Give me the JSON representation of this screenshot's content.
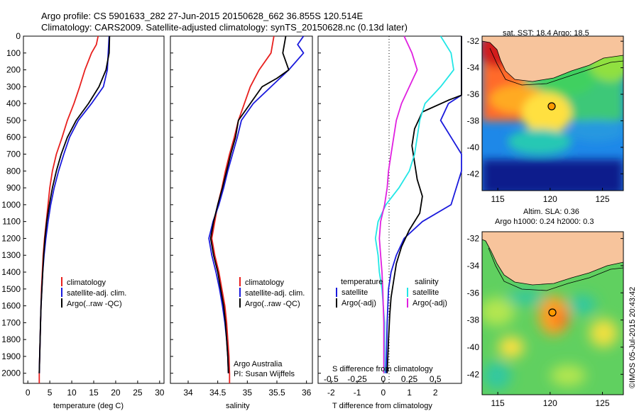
{
  "header": {
    "line1": "Argo profile: CS 5901633_282 27-Jun-2015 20150628_662 36.855S 120.514E",
    "line2": "Climatology: CARS2009. Satellite-adjusted climatology: synTS_20150628.nc (0.13d later)"
  },
  "colors": {
    "clim": "#e8201e",
    "sat": "#1a1adc",
    "argo": "#000000",
    "sat_s": "#22e6e6",
    "argo_s": "#e020e0",
    "land": "#f7c49c"
  },
  "depth_ticks": [
    0,
    100,
    200,
    300,
    400,
    500,
    600,
    700,
    800,
    900,
    1000,
    1100,
    1200,
    1300,
    1400,
    1500,
    1600,
    1700,
    1800,
    1900,
    2000
  ],
  "panels": {
    "temp": {
      "xlabel": "temperature (deg C)",
      "xticks": [
        "0",
        "5",
        "10",
        "15",
        "20",
        "25",
        "30"
      ],
      "legend": [
        "climatology",
        "satellite-adj. clim.",
        "Argo(..raw -QC)"
      ]
    },
    "sal": {
      "xlabel": "salinity",
      "xticks": [
        "34",
        "34.5",
        "35",
        "35.5",
        "36"
      ],
      "legend": [
        "climatology",
        "satellite-adj. clim.",
        "Argo(..raw -QC)"
      ],
      "credit1": "Argo Australia",
      "credit2": "PI: Susan Wijffels"
    },
    "diff": {
      "xlabel": "T difference from climatology",
      "xlabel_top": "S difference from climatology",
      "xticks_t": [
        "-2",
        "-1",
        "0",
        "1",
        "2"
      ],
      "xticks_s": [
        "-0.5",
        "-0.25",
        "0",
        "0.25",
        "0.5"
      ],
      "legend_t_title": "temperature",
      "legend_s_title": "salinity",
      "legend_t": [
        "satellite",
        "Argo(-adj)"
      ],
      "legend_s": [
        "satellite",
        "Argo(-adj)"
      ]
    }
  },
  "maps": {
    "sst_title": "sat. SST: 18.4 Argo: 18.5",
    "sla_title1": "Altim. SLA: 0.36",
    "sla_title2": "Argo h1000: 0.24 h2000: 0.3",
    "lat_ticks": [
      "-32",
      "-34",
      "-36",
      "-38",
      "-40",
      "-42"
    ],
    "lon_ticks": [
      "115",
      "120",
      "125"
    ],
    "stamp": "©IMOS 05-Jul-2015 20:43:42"
  },
  "chart_data": [
    {
      "type": "line",
      "xlabel": "temperature (deg C)",
      "xlim": [
        -1,
        31
      ],
      "ylim": [
        2060,
        0
      ],
      "series": [
        {
          "name": "climatology",
          "color": "#e8201e",
          "points": [
            [
              16,
              0
            ],
            [
              15.6,
              50
            ],
            [
              14.5,
              100
            ],
            [
              13,
              200
            ],
            [
              11.8,
              300
            ],
            [
              10.5,
              400
            ],
            [
              9,
              500
            ],
            [
              7.8,
              600
            ],
            [
              6.5,
              700
            ],
            [
              5.6,
              800
            ],
            [
              5,
              900
            ],
            [
              4.6,
              1000
            ],
            [
              4.2,
              1100
            ],
            [
              3.8,
              1200
            ],
            [
              3.5,
              1300
            ],
            [
              3.3,
              1400
            ],
            [
              3.1,
              1500
            ],
            [
              3,
              1600
            ],
            [
              2.9,
              1700
            ],
            [
              2.8,
              1800
            ],
            [
              2.7,
              1900
            ],
            [
              2.6,
              2000
            ],
            [
              2.6,
              2060
            ]
          ]
        },
        {
          "name": "satellite-adj. clim.",
          "color": "#1a1adc",
          "points": [
            [
              18.5,
              0
            ],
            [
              18.3,
              100
            ],
            [
              18.1,
              200
            ],
            [
              17.2,
              300
            ],
            [
              14.5,
              400
            ],
            [
              11.5,
              500
            ],
            [
              9.5,
              600
            ],
            [
              8.2,
              700
            ],
            [
              7,
              800
            ],
            [
              6,
              900
            ],
            [
              5.2,
              1000
            ],
            [
              4.6,
              1100
            ],
            [
              4.1,
              1200
            ],
            [
              3.7,
              1300
            ],
            [
              3.4,
              1400
            ],
            [
              3.2,
              1500
            ],
            [
              3,
              1600
            ],
            [
              2.9,
              1700
            ],
            [
              2.8,
              1800
            ],
            [
              2.7,
              1900
            ],
            [
              2.6,
              2000
            ]
          ]
        },
        {
          "name": "Argo(..raw -QC)",
          "color": "#000000",
          "points": [
            [
              18.6,
              0
            ],
            [
              18.5,
              100
            ],
            [
              17.8,
              200
            ],
            [
              16.2,
              300
            ],
            [
              13.8,
              400
            ],
            [
              11,
              500
            ],
            [
              9,
              600
            ],
            [
              7.6,
              700
            ],
            [
              6.5,
              800
            ],
            [
              5.6,
              900
            ],
            [
              4.9,
              1000
            ],
            [
              4.3,
              1100
            ],
            [
              3.9,
              1200
            ],
            [
              3.6,
              1300
            ],
            [
              3.4,
              1400
            ],
            [
              3.2,
              1500
            ],
            [
              3,
              1600
            ],
            [
              2.9,
              1700
            ],
            [
              2.8,
              1800
            ],
            [
              2.7,
              1900
            ],
            [
              2.6,
              2000
            ]
          ]
        }
      ]
    },
    {
      "type": "line",
      "xlabel": "salinity",
      "xlim": [
        33.7,
        36.1
      ],
      "ylim": [
        2060,
        0
      ],
      "series": [
        {
          "name": "climatology",
          "color": "#e8201e",
          "points": [
            [
              35.45,
              0
            ],
            [
              35.4,
              100
            ],
            [
              35.2,
              200
            ],
            [
              35.05,
              300
            ],
            [
              34.95,
              400
            ],
            [
              34.85,
              500
            ],
            [
              34.78,
              600
            ],
            [
              34.7,
              700
            ],
            [
              34.63,
              800
            ],
            [
              34.57,
              900
            ],
            [
              34.5,
              1000
            ],
            [
              34.45,
              1100
            ],
            [
              34.4,
              1200
            ],
            [
              34.45,
              1300
            ],
            [
              34.52,
              1400
            ],
            [
              34.57,
              1500
            ],
            [
              34.62,
              1600
            ],
            [
              34.65,
              1700
            ],
            [
              34.67,
              1800
            ],
            [
              34.69,
              1900
            ],
            [
              34.7,
              2000
            ],
            [
              34.7,
              2060
            ]
          ]
        },
        {
          "name": "satellite-adj. clim.",
          "color": "#1a1adc",
          "points": [
            [
              35.95,
              0
            ],
            [
              35.85,
              50
            ],
            [
              35.95,
              100
            ],
            [
              35.7,
              200
            ],
            [
              35.4,
              300
            ],
            [
              35.1,
              400
            ],
            [
              34.9,
              500
            ],
            [
              34.83,
              600
            ],
            [
              34.75,
              700
            ],
            [
              34.67,
              800
            ],
            [
              34.6,
              900
            ],
            [
              34.52,
              1000
            ],
            [
              34.42,
              1100
            ],
            [
              34.35,
              1200
            ],
            [
              34.4,
              1300
            ],
            [
              34.47,
              1400
            ],
            [
              34.53,
              1500
            ],
            [
              34.58,
              1600
            ],
            [
              34.62,
              1700
            ],
            [
              34.65,
              1800
            ],
            [
              34.67,
              1900
            ],
            [
              34.68,
              2000
            ]
          ]
        },
        {
          "name": "Argo(..raw -QC)",
          "color": "#000000",
          "points": [
            [
              35.65,
              0
            ],
            [
              35.6,
              100
            ],
            [
              35.7,
              200
            ],
            [
              35.5,
              250
            ],
            [
              35.25,
              300
            ],
            [
              35.05,
              400
            ],
            [
              34.85,
              500
            ],
            [
              34.8,
              600
            ],
            [
              34.72,
              700
            ],
            [
              34.65,
              800
            ],
            [
              34.58,
              900
            ],
            [
              34.5,
              1000
            ],
            [
              34.43,
              1100
            ],
            [
              34.38,
              1200
            ],
            [
              34.43,
              1300
            ],
            [
              34.5,
              1400
            ],
            [
              34.55,
              1500
            ],
            [
              34.6,
              1600
            ],
            [
              34.63,
              1700
            ],
            [
              34.65,
              1800
            ],
            [
              34.67,
              1900
            ],
            [
              34.68,
              2000
            ]
          ]
        }
      ]
    },
    {
      "type": "line",
      "xlabel": "T difference from climatology",
      "x2label": "S difference from climatology",
      "xlim": [
        -2.5,
        3
      ],
      "ylim": [
        2060,
        0
      ],
      "series": [
        {
          "name": "temperature satellite",
          "color": "#1a1adc",
          "points": [
            [
              3,
              0
            ],
            [
              3,
              200
            ],
            [
              3,
              300
            ],
            [
              3,
              350
            ],
            [
              2.5,
              400
            ],
            [
              2.2,
              500
            ],
            [
              2.6,
              600
            ],
            [
              3,
              700
            ],
            [
              3,
              800
            ],
            [
              2.6,
              1000
            ],
            [
              1.5,
              1100
            ],
            [
              0.8,
              1200
            ],
            [
              0.5,
              1300
            ],
            [
              0.3,
              1400
            ],
            [
              0.2,
              1500
            ],
            [
              0.15,
              1700
            ],
            [
              0.12,
              1900
            ],
            [
              0.1,
              2000
            ]
          ]
        },
        {
          "name": "temperature Argo(-adj)",
          "color": "#000000",
          "points": [
            [
              3,
              0
            ],
            [
              3,
              300
            ],
            [
              3,
              350
            ],
            [
              2.5,
              380
            ],
            [
              1.5,
              450
            ],
            [
              1.2,
              550
            ],
            [
              1.1,
              650
            ],
            [
              1.2,
              750
            ],
            [
              1.3,
              850
            ],
            [
              1.5,
              950
            ],
            [
              1.4,
              1050
            ],
            [
              1,
              1150
            ],
            [
              0.7,
              1250
            ],
            [
              0.5,
              1350
            ],
            [
              0.4,
              1450
            ],
            [
              0.3,
              1550
            ],
            [
              0.25,
              1650
            ],
            [
              0.2,
              1800
            ],
            [
              0.15,
              2000
            ]
          ]
        },
        {
          "name": "salinity satellite",
          "color": "#22e6e6",
          "points": [
            [
              2.2,
              0
            ],
            [
              2.6,
              100
            ],
            [
              2.7,
              200
            ],
            [
              2.2,
              300
            ],
            [
              1.6,
              400
            ],
            [
              1.4,
              500
            ],
            [
              1.3,
              600
            ],
            [
              1.2,
              700
            ],
            [
              1,
              800
            ],
            [
              0.6,
              900
            ],
            [
              0.1,
              1000
            ],
            [
              -0.2,
              1100
            ],
            [
              -0.3,
              1200
            ],
            [
              -0.2,
              1300
            ],
            [
              -0.15,
              1400
            ],
            [
              -0.05,
              1500
            ],
            [
              0,
              1600
            ],
            [
              0.05,
              1700
            ],
            [
              0.05,
              1800
            ],
            [
              0.05,
              1900
            ],
            [
              0.05,
              2000
            ]
          ]
        },
        {
          "name": "salinity Argo(-adj)",
          "color": "#e020e0",
          "points": [
            [
              0.8,
              0
            ],
            [
              1.1,
              100
            ],
            [
              1.3,
              200
            ],
            [
              1,
              300
            ],
            [
              0.7,
              400
            ],
            [
              0.5,
              500
            ],
            [
              0.4,
              600
            ],
            [
              0.3,
              700
            ],
            [
              0.2,
              800
            ],
            [
              0.15,
              900
            ],
            [
              0.05,
              1000
            ],
            [
              -0.1,
              1100
            ],
            [
              -0.15,
              1200
            ],
            [
              -0.1,
              1300
            ],
            [
              -0.05,
              1400
            ],
            [
              -0.02,
              1500
            ],
            [
              0,
              1600
            ],
            [
              0.02,
              1700
            ],
            [
              0.02,
              1800
            ],
            [
              0.02,
              1900
            ],
            [
              0.02,
              2000
            ]
          ]
        }
      ]
    },
    {
      "type": "heatmap",
      "title": "sat. SST: 18.4 Argo: 18.5",
      "xlim": [
        113.5,
        127
      ],
      "ylim": [
        -43,
        -31
      ]
    },
    {
      "type": "heatmap",
      "title": "Altim. SLA: 0.36",
      "xlim": [
        113.5,
        127
      ],
      "ylim": [
        -43,
        -31
      ]
    }
  ]
}
